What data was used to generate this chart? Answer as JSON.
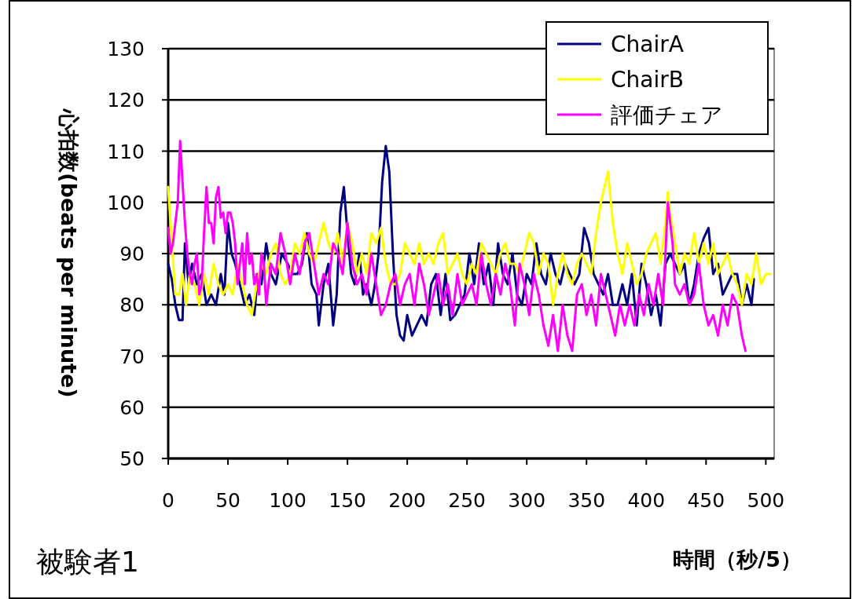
{
  "chart_data": {
    "type": "line",
    "ylabel": "心拍数(beats per minute)",
    "xlabel": "時間（秒/5）",
    "annotations": [
      "被験者1"
    ],
    "xlim": [
      0,
      507
    ],
    "xticks": [
      0,
      50,
      100,
      150,
      200,
      250,
      300,
      350,
      400,
      450,
      500
    ],
    "ylim": [
      50,
      130
    ],
    "yticks": [
      50,
      60,
      70,
      80,
      90,
      100,
      110,
      120,
      130
    ],
    "grid": "y",
    "legend": "top right",
    "series": [
      {
        "name": "ChairA",
        "color": "#000080",
        "x": [
          0,
          3,
          6,
          9,
          12,
          14,
          17,
          20,
          24,
          28,
          32,
          36,
          40,
          44,
          47,
          50,
          53,
          56,
          60,
          64,
          68,
          72,
          75,
          78,
          82,
          86,
          90,
          95,
          100,
          104,
          108,
          112,
          116,
          120,
          124,
          126,
          130,
          134,
          138,
          141,
          144,
          147,
          150,
          153,
          156,
          160,
          163,
          166,
          170,
          173,
          176,
          179,
          182,
          185,
          188,
          191,
          194,
          197,
          200,
          204,
          208,
          212,
          216,
          220,
          224,
          228,
          232,
          236,
          240,
          244,
          248,
          252,
          256,
          260,
          264,
          268,
          272,
          276,
          280,
          284,
          288,
          292,
          296,
          300,
          304,
          308,
          312,
          316,
          320,
          324,
          328,
          332,
          336,
          340,
          344,
          348,
          352,
          356,
          360,
          364,
          368,
          372,
          376,
          380,
          384,
          388,
          392,
          396,
          400,
          404,
          408,
          412,
          416,
          420,
          424,
          428,
          432,
          436,
          440,
          444,
          448,
          452,
          456,
          460,
          464,
          468,
          472,
          476,
          480,
          484,
          488,
          490
        ],
        "values": [
          88,
          85,
          80,
          77,
          77,
          92,
          84,
          88,
          84,
          86,
          80,
          82,
          80,
          86,
          82,
          96,
          90,
          88,
          84,
          80,
          82,
          78,
          86,
          84,
          92,
          86,
          84,
          90,
          88,
          86,
          86,
          88,
          94,
          84,
          82,
          76,
          84,
          88,
          76,
          82,
          98,
          103,
          94,
          86,
          84,
          90,
          82,
          84,
          80,
          84,
          90,
          104,
          111,
          106,
          90,
          78,
          74,
          73,
          78,
          74,
          76,
          78,
          76,
          84,
          86,
          78,
          86,
          77,
          78,
          80,
          82,
          90,
          84,
          92,
          84,
          88,
          80,
          92,
          86,
          84,
          90,
          82,
          80,
          86,
          84,
          92,
          86,
          84,
          90,
          86,
          84,
          88,
          86,
          84,
          86,
          95,
          92,
          86,
          84,
          82,
          86,
          80,
          80,
          84,
          80,
          86,
          76,
          88,
          84,
          78,
          82,
          76,
          88,
          90,
          88,
          86,
          88,
          80,
          84,
          90,
          93,
          95,
          86,
          88,
          82,
          84,
          86,
          86,
          80,
          84,
          80,
          85
        ]
      },
      {
        "name": "ChairB",
        "color": "#ffff00",
        "x": [
          0,
          3,
          6,
          9,
          12,
          15,
          18,
          22,
          26,
          30,
          34,
          38,
          42,
          46,
          50,
          54,
          58,
          62,
          66,
          70,
          74,
          78,
          82,
          86,
          90,
          94,
          98,
          102,
          106,
          110,
          114,
          118,
          122,
          126,
          130,
          134,
          138,
          142,
          146,
          150,
          154,
          158,
          162,
          166,
          170,
          174,
          178,
          182,
          186,
          190,
          194,
          198,
          202,
          206,
          210,
          214,
          218,
          222,
          226,
          230,
          234,
          238,
          242,
          246,
          250,
          254,
          258,
          262,
          266,
          270,
          274,
          278,
          282,
          286,
          290,
          294,
          298,
          302,
          306,
          310,
          314,
          318,
          322,
          326,
          330,
          334,
          338,
          342,
          346,
          350,
          354,
          358,
          362,
          366,
          368,
          372,
          376,
          380,
          384,
          388,
          392,
          396,
          400,
          404,
          408,
          412,
          416,
          418,
          420,
          424,
          428,
          432,
          436,
          440,
          444,
          448,
          452,
          456,
          460,
          464,
          468,
          472,
          476,
          480,
          484,
          488,
          492,
          496,
          500,
          504
        ],
        "values": [
          103,
          92,
          82,
          82,
          86,
          80,
          86,
          84,
          80,
          86,
          82,
          88,
          84,
          82,
          84,
          82,
          88,
          84,
          80,
          78,
          84,
          88,
          86,
          90,
          92,
          86,
          84,
          86,
          92,
          90,
          94,
          90,
          88,
          92,
          96,
          92,
          90,
          94,
          88,
          96,
          92,
          86,
          90,
          86,
          94,
          92,
          95,
          88,
          84,
          84,
          86,
          92,
          90,
          88,
          92,
          88,
          90,
          88,
          92,
          94,
          86,
          88,
          90,
          86,
          84,
          88,
          86,
          92,
          90,
          88,
          86,
          90,
          92,
          88,
          88,
          86,
          90,
          94,
          92,
          86,
          90,
          88,
          80,
          86,
          90,
          86,
          84,
          88,
          90,
          88,
          86,
          94,
          100,
          104,
          106,
          96,
          90,
          86,
          92,
          88,
          84,
          86,
          90,
          92,
          94,
          88,
          96,
          102,
          98,
          92,
          86,
          90,
          88,
          94,
          88,
          92,
          88,
          92,
          86,
          88,
          90,
          86,
          84,
          80,
          86,
          84,
          90,
          84,
          86,
          86
        ]
      },
      {
        "name": "評価チェア",
        "color": "#ff00ff",
        "x": [
          0,
          2,
          4,
          6,
          8,
          10,
          12,
          14,
          16,
          18,
          20,
          22,
          24,
          26,
          28,
          30,
          32,
          34,
          36,
          38,
          40,
          42,
          44,
          46,
          48,
          50,
          52,
          54,
          56,
          58,
          60,
          62,
          64,
          66,
          68,
          70,
          72,
          74,
          76,
          78,
          80,
          82,
          86,
          90,
          94,
          98,
          102,
          106,
          110,
          114,
          118,
          122,
          126,
          130,
          134,
          138,
          142,
          146,
          150,
          154,
          158,
          162,
          166,
          170,
          174,
          178,
          182,
          186,
          190,
          194,
          198,
          202,
          206,
          210,
          214,
          218,
          222,
          226,
          230,
          234,
          238,
          242,
          246,
          250,
          254,
          258,
          262,
          266,
          270,
          274,
          278,
          282,
          286,
          290,
          294,
          298,
          302,
          306,
          310,
          314,
          318,
          322,
          326,
          330,
          334,
          338,
          342,
          346,
          350,
          354,
          358,
          362,
          366,
          370,
          374,
          378,
          382,
          386,
          390,
          394,
          398,
          402,
          406,
          410,
          414,
          418,
          422,
          424,
          428,
          432,
          436,
          440,
          444,
          448,
          452,
          456,
          460,
          464,
          468,
          472,
          476,
          480,
          483
        ],
        "values": [
          95,
          90,
          92,
          96,
          100,
          112,
          104,
          96,
          90,
          86,
          84,
          88,
          90,
          82,
          84,
          94,
          103,
          96,
          96,
          92,
          101,
          103,
          97,
          98,
          94,
          98,
          98,
          96,
          92,
          84,
          88,
          92,
          84,
          94,
          88,
          90,
          84,
          86,
          82,
          90,
          88,
          80,
          88,
          86,
          94,
          90,
          84,
          90,
          86,
          92,
          94,
          88,
          82,
          86,
          84,
          92,
          90,
          86,
          96,
          88,
          84,
          86,
          82,
          90,
          84,
          78,
          80,
          84,
          86,
          80,
          84,
          86,
          80,
          88,
          84,
          78,
          82,
          86,
          80,
          84,
          78,
          86,
          80,
          82,
          84,
          80,
          90,
          84,
          80,
          86,
          82,
          88,
          84,
          76,
          88,
          84,
          78,
          86,
          82,
          76,
          72,
          78,
          71,
          80,
          74,
          71,
          82,
          84,
          78,
          82,
          76,
          86,
          82,
          78,
          74,
          80,
          76,
          80,
          76,
          82,
          78,
          84,
          80,
          86,
          80,
          100,
          92,
          84,
          82,
          84,
          80,
          82,
          88,
          80,
          76,
          78,
          74,
          80,
          76,
          82,
          80,
          74,
          71
        ]
      }
    ]
  }
}
